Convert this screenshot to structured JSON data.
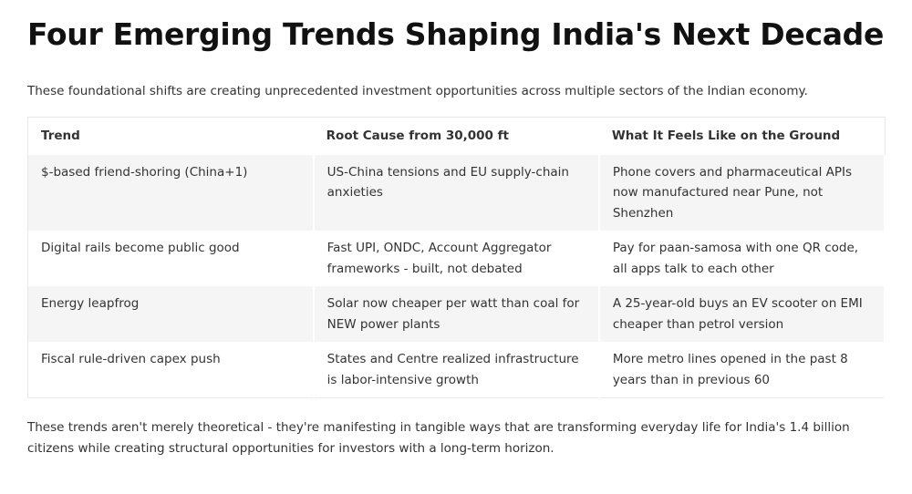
{
  "title": "Four Emerging Trends Shaping India's Next Decade",
  "intro": "These foundational shifts are creating unprecedented investment opportunities across multiple sectors of the Indian economy.",
  "table": {
    "header": [
      "Trend",
      "Root Cause from 30,000 ft",
      "What It Feels Like on the Ground"
    ],
    "rows": [
      [
        "$-based friend-shoring (China+1)",
        "US-China tensions and EU supply-chain anxieties",
        "Phone covers and pharmaceutical APIs now manufactured near Pune, not Shenzhen"
      ],
      [
        "Digital rails become public good",
        "Fast UPI, ONDC, Account Aggregator frameworks - built, not debated",
        "Pay for paan-samosa with one QR code, all apps talk to each other"
      ],
      [
        "Energy leapfrog",
        "Solar now cheaper per watt than coal for NEW power plants",
        "A 25-year-old buys an EV scooter on EMI cheaper than petrol version"
      ],
      [
        "Fiscal rule-driven capex push",
        "States and Centre realized infrastructure is labor-intensive growth",
        "More metro lines opened in the past 8 years than in previous 60"
      ]
    ]
  },
  "outro": "These trends aren't merely theoretical - they're manifesting in tangible ways that are transforming everyday life for India's 1.4 billion citizens while creating structural opportunities for investors with a long-term horizon."
}
